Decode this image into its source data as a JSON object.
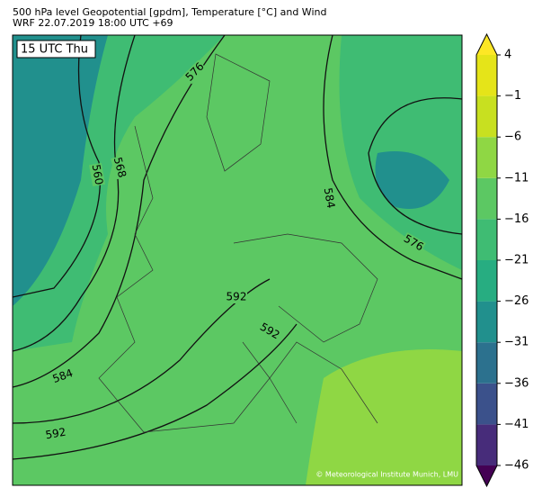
{
  "header": {
    "line1": "500 hPa level Geopotential [gpdm], Temperature [°C] and Wind",
    "line2": "WRF 22.07.2019 18:00 UTC +69"
  },
  "map": {
    "time_label": "15 UTC Thu",
    "contour_labels": [
      "576",
      "568",
      "560",
      "584",
      "576",
      "592",
      "592",
      "584",
      "592"
    ],
    "credit": "© Meteorological Institute Munich, LMU"
  },
  "colorbar": {
    "lim": [
      -46,
      4
    ],
    "ticks": [
      {
        "value": -46,
        "label": "−46"
      },
      {
        "value": -41,
        "label": "−41"
      },
      {
        "value": -36,
        "label": "−36"
      },
      {
        "value": -31,
        "label": "−31"
      },
      {
        "value": -26,
        "label": "−26"
      },
      {
        "value": -21,
        "label": "−21"
      },
      {
        "value": -16,
        "label": "−16"
      },
      {
        "value": -11,
        "label": "−11"
      },
      {
        "value": -6,
        "label": "−6"
      },
      {
        "value": -1,
        "label": "−1"
      },
      4
    ],
    "colors": [
      "#440154",
      "#472c7a",
      "#3b518b",
      "#2c718e",
      "#21908d",
      "#27ad81",
      "#3fbc73",
      "#5cc863",
      "#8fd744",
      "#c8e020",
      "#e5e419",
      "#fde725"
    ]
  }
}
